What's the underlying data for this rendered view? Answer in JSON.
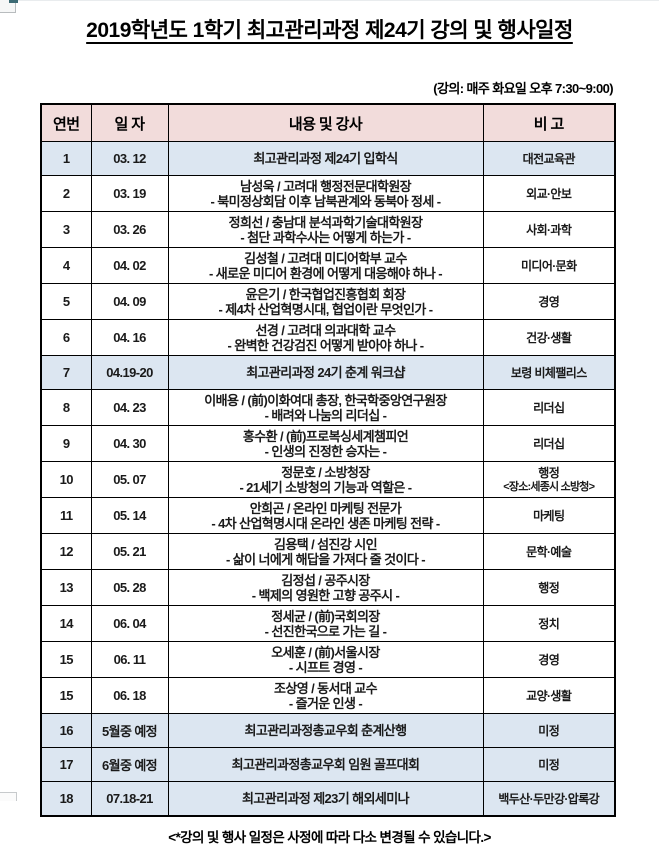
{
  "title": "2019학년도 1학기 최고관리과정 제24기 강의 및 행사일정",
  "schedule_note": "(강의: 매주 화요일 오후 7:30~9:00)",
  "footer": "<*강의 및 행사 일정은 사정에 따라 다소 변경될 수 있습니다.>",
  "colors": {
    "header_bg": "#F2DCDB",
    "highlight_bg": "#DCE6F1",
    "border": "#000000"
  },
  "table": {
    "headers": [
      "연번",
      "일 자",
      "내용 및 강사",
      "비 고"
    ],
    "rows": [
      {
        "no": "1",
        "date": "03. 12",
        "content": [
          "최고관리과정 제24기 입학식"
        ],
        "note": [
          "대전교육관"
        ],
        "highlight": true
      },
      {
        "no": "2",
        "date": "03. 19",
        "content": [
          "남성욱 / 고려대 행정전문대학원장",
          "- 북미정상회담 이후 남북관계와 동북아 정세 -"
        ],
        "note": [
          "외교·안보"
        ],
        "highlight": false
      },
      {
        "no": "3",
        "date": "03. 26",
        "content": [
          "정희선 / 충남대 분석과학기술대학원장",
          "- 첨단 과학수사는 어떻게 하는가 -"
        ],
        "note": [
          "사회·과학"
        ],
        "highlight": false
      },
      {
        "no": "4",
        "date": "04. 02",
        "content": [
          "김성철 / 고려대 미디어학부 교수",
          "- 새로운 미디어 환경에 어떻게 대응해야 하나 -"
        ],
        "note": [
          "미디어·문화"
        ],
        "highlight": false
      },
      {
        "no": "5",
        "date": "04. 09",
        "content": [
          "윤은기 / 한국협업진흥협회 회장",
          "- 제4차 산업혁명시대, 협업이란 무엇인가 -"
        ],
        "note": [
          "경영"
        ],
        "highlight": false
      },
      {
        "no": "6",
        "date": "04. 16",
        "content": [
          "선경 / 고려대 의과대학 교수",
          "- 완벽한 건강검진 어떻게 받아야 하나 -"
        ],
        "note": [
          "건강·생활"
        ],
        "highlight": false
      },
      {
        "no": "7",
        "date": "04.19-20",
        "content": [
          "최고관리과정 24기 춘계 워크샵"
        ],
        "note": [
          "보령 비체팰리스"
        ],
        "highlight": true
      },
      {
        "no": "8",
        "date": "04. 23",
        "content": [
          "이배용 / (前)이화여대 총장, 한국학중앙연구원장",
          "- 배려와 나눔의  리더십 -"
        ],
        "note": [
          "리더십"
        ],
        "highlight": false
      },
      {
        "no": "9",
        "date": "04. 30",
        "content": [
          "홍수환 / (前)프로복싱세계챔피언",
          "- 인생의 진정한 승자는 -"
        ],
        "note": [
          "리더십"
        ],
        "highlight": false
      },
      {
        "no": "10",
        "date": "05. 07",
        "content": [
          "정문호 / 소방청장",
          "- 21세기 소방청의 기능과 역할은 -"
        ],
        "note": [
          "행정",
          "<장소:세종시 소방청>"
        ],
        "highlight": false
      },
      {
        "no": "11",
        "date": "05. 14",
        "content": [
          "안희곤 / 온라인 마케팅 전문가",
          "- 4차 산업혁명시대 온라인 생존 마케팅 전략 -"
        ],
        "note": [
          "마케팅"
        ],
        "highlight": false
      },
      {
        "no": "12",
        "date": "05. 21",
        "content": [
          "김용택 / 섬진강 시인",
          "- 삶이 너에게 해답을 가져다 줄 것이다 -"
        ],
        "note": [
          "문학·예술"
        ],
        "highlight": false
      },
      {
        "no": "13",
        "date": "05. 28",
        "content": [
          "김정섭 / 공주시장",
          "- 백제의 영원한 고향 공주시 -"
        ],
        "note": [
          "행정"
        ],
        "highlight": false
      },
      {
        "no": "14",
        "date": "06. 04",
        "content": [
          "정세균 / (前)국회의장",
          "- 선진한국으로 가는 길 -"
        ],
        "note": [
          "정치"
        ],
        "highlight": false
      },
      {
        "no": "15",
        "date": "06. 11",
        "content": [
          "오세훈 / (前)서울시장",
          "- 시프트 경영 -"
        ],
        "note": [
          "경영"
        ],
        "highlight": false
      },
      {
        "no": "15",
        "date": "06. 18",
        "content": [
          "조상영 / 동서대 교수",
          "- 즐거운 인생 -"
        ],
        "note": [
          "교양·생활"
        ],
        "highlight": false
      },
      {
        "no": "16",
        "date": "5월중 예정",
        "content": [
          "최고관리과정총교우회 춘계산행"
        ],
        "note": [
          "미정"
        ],
        "highlight": true
      },
      {
        "no": "17",
        "date": "6월중 예정",
        "content": [
          "최고관리과정총교우회 임원 골프대회"
        ],
        "note": [
          "미정"
        ],
        "highlight": true
      },
      {
        "no": "18",
        "date": "07.18-21",
        "content": [
          "최고관리과정 제23기 해외세미나"
        ],
        "note": [
          "백두산·두만강·압록강"
        ],
        "highlight": true
      }
    ]
  }
}
